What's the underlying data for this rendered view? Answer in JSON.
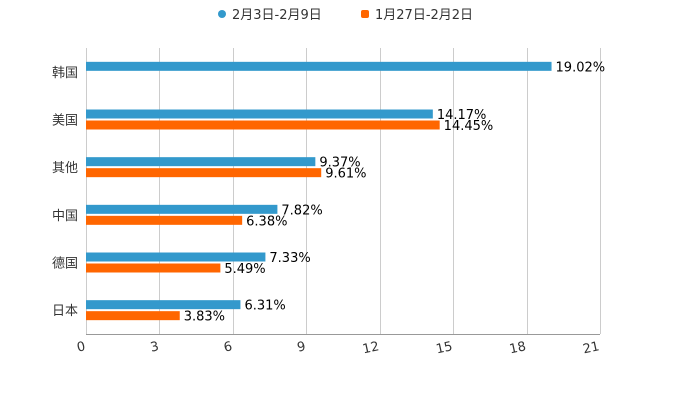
{
  "chart_data": {
    "type": "bar",
    "orientation": "horizontal",
    "title": "",
    "xlabel": "",
    "ylabel": "",
    "xlim": [
      0,
      21
    ],
    "xticks": [
      0,
      3,
      6,
      9,
      12,
      15,
      18,
      21
    ],
    "grid": true,
    "legend_position": "top-center",
    "categories": [
      "韩国",
      "美国",
      "其他",
      "中国",
      "德国",
      "日本"
    ],
    "series": [
      {
        "name": "2月3日-2月9日",
        "color": "#3399cc",
        "values": [
          19.02,
          14.17,
          9.37,
          7.82,
          7.33,
          6.31
        ],
        "labels": [
          "19.02%",
          "14.17%",
          "9.37%",
          "7.82%",
          "7.33%",
          "6.31%"
        ]
      },
      {
        "name": "1月27日-2月2日",
        "color": "#ff6600",
        "values": [
          null,
          14.45,
          9.61,
          6.38,
          5.49,
          3.83
        ],
        "labels": [
          null,
          "14.45%",
          "9.61%",
          "6.38%",
          "5.49%",
          "3.83%"
        ]
      }
    ]
  }
}
